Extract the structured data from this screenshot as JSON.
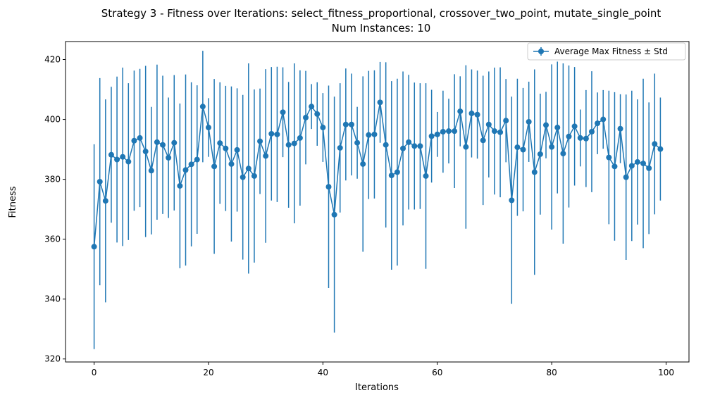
{
  "chart_data": {
    "type": "line",
    "title": "Strategy 3 - Fitness over Iterations: select_fitness_proportional, crossover_two_point, mutate_single_point",
    "subtitle": "Num Instances: 10",
    "xlabel": "Iterations",
    "ylabel": "Fitness",
    "xlim": [
      -5,
      104
    ],
    "ylim": [
      319,
      426
    ],
    "xticks": [
      0,
      20,
      40,
      60,
      80,
      100
    ],
    "yticks": [
      320,
      340,
      360,
      380,
      400,
      420
    ],
    "grid": false,
    "legend_position": "top-right",
    "color": "#1f77b4",
    "series": [
      {
        "name": "Average Max Fitness ± Std",
        "x": [
          0,
          1,
          2,
          3,
          4,
          5,
          6,
          7,
          8,
          9,
          10,
          11,
          12,
          13,
          14,
          15,
          16,
          17,
          18,
          19,
          20,
          21,
          22,
          23,
          24,
          25,
          26,
          27,
          28,
          29,
          30,
          31,
          32,
          33,
          34,
          35,
          36,
          37,
          38,
          39,
          40,
          41,
          42,
          43,
          44,
          45,
          46,
          47,
          48,
          49,
          50,
          51,
          52,
          53,
          54,
          55,
          56,
          57,
          58,
          59,
          60,
          61,
          62,
          63,
          64,
          65,
          66,
          67,
          68,
          69,
          70,
          71,
          72,
          73,
          74,
          75,
          76,
          77,
          78,
          79,
          80,
          81,
          82,
          83,
          84,
          85,
          86,
          87,
          88,
          89,
          90,
          91,
          92,
          93,
          94,
          95,
          96,
          97,
          98,
          99
        ],
        "values": [
          357.5,
          379.2,
          372.8,
          388.2,
          386.6,
          387.5,
          385.9,
          392.9,
          393.8,
          389.3,
          382.9,
          392.4,
          391.5,
          387.2,
          392.2,
          377.8,
          383.1,
          385.0,
          386.6,
          404.3,
          397.3,
          384.3,
          392.1,
          390.3,
          385.1,
          389.8,
          380.7,
          383.6,
          381.1,
          392.7,
          387.8,
          395.2,
          395.0,
          402.4,
          391.5,
          392.0,
          393.8,
          400.6,
          404.3,
          401.8,
          397.3,
          377.5,
          368.2,
          390.5,
          398.3,
          398.3,
          392.2,
          385.1,
          394.8,
          395.0,
          405.7,
          391.5,
          381.3,
          382.4,
          390.3,
          392.4,
          391.1,
          391.1,
          381.1,
          394.4,
          395.0,
          395.9,
          396.1,
          396.1,
          402.7,
          390.8,
          402.0,
          401.6,
          393.0,
          398.3,
          396.1,
          395.7,
          399.6,
          373.0,
          390.7,
          389.9,
          399.2,
          382.4,
          388.4,
          398.1,
          390.8,
          397.3,
          388.6,
          394.3,
          397.7,
          393.8,
          393.6,
          395.9,
          398.7,
          400.0,
          387.3,
          384.3,
          396.9,
          380.7,
          384.5,
          385.8,
          385.3,
          383.7,
          391.8,
          390.1
        ],
        "std": [
          34.2,
          34.6,
          33.9,
          22.7,
          27.7,
          29.8,
          26.2,
          23.4,
          23.1,
          28.6,
          21.3,
          25.9,
          23.1,
          20.1,
          22.6,
          27.5,
          31.9,
          27.4,
          24.8,
          18.6,
          9.8,
          29.2,
          20.3,
          20.9,
          25.9,
          20.6,
          27.5,
          35.1,
          28.9,
          17.6,
          29.0,
          22.3,
          22.6,
          15.0,
          21.0,
          26.7,
          22.6,
          15.6,
          7.5,
          10.6,
          11.5,
          33.8,
          39.4,
          21.6,
          18.7,
          17.0,
          12.0,
          29.3,
          21.4,
          21.4,
          13.5,
          27.6,
          31.5,
          31.2,
          25.7,
          22.5,
          21.2,
          21.0,
          31.0,
          15.5,
          7.5,
          13.7,
          10.8,
          19.0,
          11.7,
          27.3,
          14.7,
          14.7,
          21.6,
          17.7,
          21.2,
          21.7,
          13.9,
          34.6,
          22.9,
          20.6,
          13.4,
          34.3,
          20.2,
          11.1,
          27.6,
          22.0,
          30.1,
          23.7,
          19.8,
          9.5,
          16.2,
          20.2,
          10.3,
          9.8,
          22.3,
          24.8,
          11.5,
          27.6,
          25.1,
          20.9,
          28.3,
          22.0,
          23.5,
          17.2
        ]
      }
    ]
  }
}
